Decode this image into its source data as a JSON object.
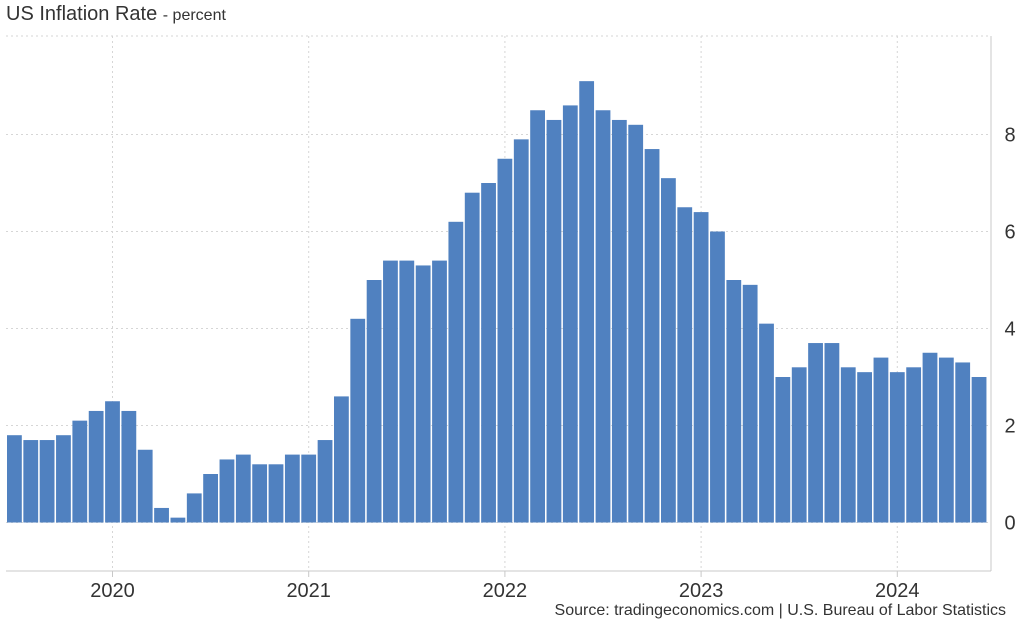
{
  "header": {
    "title": "US Inflation Rate",
    "subtitle": "- percent"
  },
  "footer": {
    "source": "Source: tradingeconomics.com | U.S. Bureau of Labor Statistics"
  },
  "chart_data": {
    "type": "bar",
    "title": "US Inflation Rate",
    "subtitle": "- percent",
    "ylabel": "",
    "xlabel": "",
    "ylim": [
      -1,
      10
    ],
    "yticks": [
      0,
      2,
      4,
      6,
      8
    ],
    "xticks": [
      "2020",
      "2021",
      "2022",
      "2023",
      "2024"
    ],
    "grid": true,
    "legend": "none",
    "bar_color": "#5081C0",
    "categories": [
      "2019-07",
      "2019-08",
      "2019-09",
      "2019-10",
      "2019-11",
      "2019-12",
      "2020-01",
      "2020-02",
      "2020-03",
      "2020-04",
      "2020-05",
      "2020-06",
      "2020-07",
      "2020-08",
      "2020-09",
      "2020-10",
      "2020-11",
      "2020-12",
      "2021-01",
      "2021-02",
      "2021-03",
      "2021-04",
      "2021-05",
      "2021-06",
      "2021-07",
      "2021-08",
      "2021-09",
      "2021-10",
      "2021-11",
      "2021-12",
      "2022-01",
      "2022-02",
      "2022-03",
      "2022-04",
      "2022-05",
      "2022-06",
      "2022-07",
      "2022-08",
      "2022-09",
      "2022-10",
      "2022-11",
      "2022-12",
      "2023-01",
      "2023-02",
      "2023-03",
      "2023-04",
      "2023-05",
      "2023-06",
      "2023-07",
      "2023-08",
      "2023-09",
      "2023-10",
      "2023-11",
      "2023-12",
      "2024-01",
      "2024-02",
      "2024-03",
      "2024-04",
      "2024-05",
      "2024-06"
    ],
    "values": [
      1.8,
      1.7,
      1.7,
      1.8,
      2.1,
      2.3,
      2.5,
      2.3,
      1.5,
      0.3,
      0.1,
      0.6,
      1.0,
      1.3,
      1.4,
      1.2,
      1.2,
      1.4,
      1.4,
      1.7,
      2.6,
      4.2,
      5.0,
      5.4,
      5.4,
      5.3,
      5.4,
      6.2,
      6.8,
      7.0,
      7.5,
      7.9,
      8.5,
      8.3,
      8.6,
      9.1,
      8.5,
      8.3,
      8.2,
      7.7,
      7.1,
      6.5,
      6.4,
      6.0,
      5.0,
      4.9,
      4.1,
      3.0,
      3.2,
      3.7,
      3.7,
      3.2,
      3.1,
      3.4,
      3.1,
      3.2,
      3.5,
      3.4,
      3.3,
      3.0
    ]
  }
}
